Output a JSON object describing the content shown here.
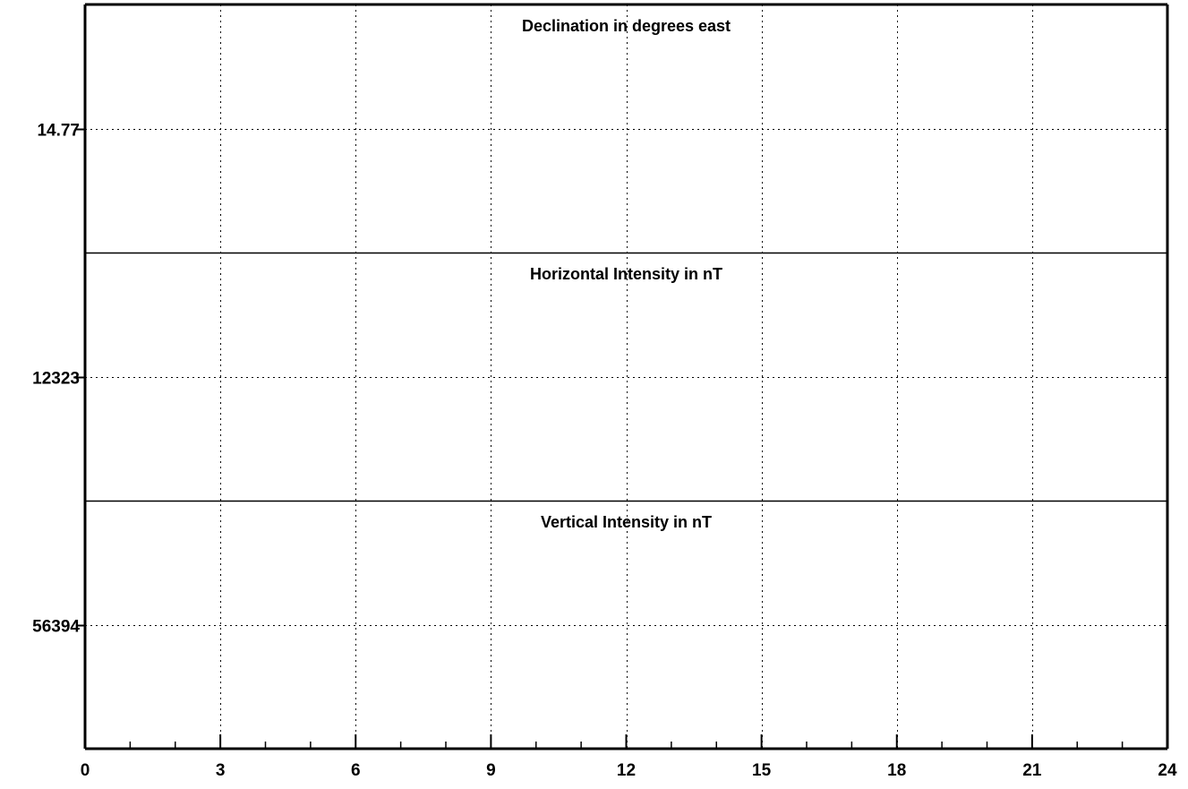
{
  "chart_data": {
    "type": "line",
    "x_range": [
      0,
      24
    ],
    "x_major_ticks": [
      0,
      3,
      6,
      9,
      12,
      15,
      18,
      21,
      24
    ],
    "x_minor_step": 1,
    "x_tick_labels": [
      "0",
      "3",
      "6",
      "9",
      "12",
      "15",
      "18",
      "21",
      "24"
    ],
    "grid": true,
    "panels": [
      {
        "id": "declination",
        "title": "Declination in degrees east",
        "y_reference": 14.77,
        "y_tick_label": "14.77",
        "series": []
      },
      {
        "id": "horizontal",
        "title": "Horizontal Intensity in nT",
        "y_reference": 12323,
        "y_tick_label": "12323",
        "series": []
      },
      {
        "id": "vertical",
        "title": "Vertical Intensity in nT",
        "y_reference": 56394,
        "y_tick_label": "56394",
        "series": []
      }
    ]
  }
}
